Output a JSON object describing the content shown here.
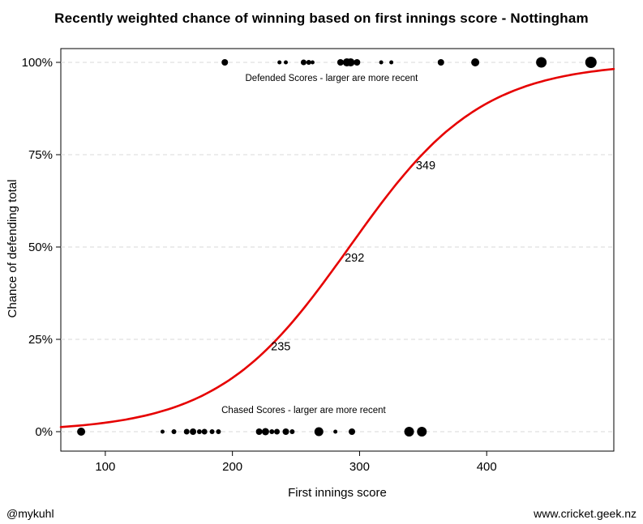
{
  "footer": {
    "left": "@mykuhl",
    "right": "www.cricket.geek.nz"
  },
  "chart_data": {
    "type": "scatter",
    "title": "Recently weighted chance of winning based on first innings score - Nottingham",
    "xlabel": "First innings score",
    "ylabel": "Chance of defending total",
    "x_domain": [
      65,
      500
    ],
    "x_ticks": [
      100,
      200,
      300,
      400
    ],
    "y_ticks": [
      0,
      25,
      50,
      75,
      100
    ],
    "y_tick_suffix": "%",
    "grid": "horizontal-dashed",
    "grid_color": "#d9d9d9",
    "point_color": "#000000",
    "curve": {
      "type": "logistic",
      "color": "#e60000",
      "midpoint_score": 292,
      "scale": 52,
      "score_at_25pct": 235,
      "score_at_50pct": 292,
      "score_at_75pct": 349
    },
    "annotations": [
      {
        "text": "235",
        "x": 238,
        "y": 22
      },
      {
        "text": "292",
        "x": 296,
        "y": 46
      },
      {
        "text": "349",
        "x": 352,
        "y": 71
      }
    ],
    "series": [
      {
        "name": "defended",
        "label": "Defended Scores - larger are more recent",
        "label_pos": {
          "x": 278,
          "y": 95
        },
        "y_value": 100,
        "points": [
          {
            "score": 194,
            "r": 4
          },
          {
            "score": 237,
            "r": 2.5
          },
          {
            "score": 242,
            "r": 2.5
          },
          {
            "score": 256,
            "r": 3.5
          },
          {
            "score": 260,
            "r": 3
          },
          {
            "score": 263,
            "r": 2.5
          },
          {
            "score": 285,
            "r": 4
          },
          {
            "score": 290,
            "r": 5
          },
          {
            "score": 293,
            "r": 5
          },
          {
            "score": 298,
            "r": 4
          },
          {
            "score": 317,
            "r": 2.5
          },
          {
            "score": 325,
            "r": 2.5
          },
          {
            "score": 364,
            "r": 4
          },
          {
            "score": 391,
            "r": 5
          },
          {
            "score": 443,
            "r": 6.5
          },
          {
            "score": 482,
            "r": 7
          }
        ]
      },
      {
        "name": "chased",
        "label": "Chased Scores - larger are more recent",
        "label_pos": {
          "x": 256,
          "y": 5
        },
        "y_value": 0,
        "points": [
          {
            "score": 81,
            "r": 5
          },
          {
            "score": 145,
            "r": 2.5
          },
          {
            "score": 154,
            "r": 3
          },
          {
            "score": 164,
            "r": 3.5
          },
          {
            "score": 169,
            "r": 4
          },
          {
            "score": 174,
            "r": 3
          },
          {
            "score": 178,
            "r": 3.5
          },
          {
            "score": 184,
            "r": 3
          },
          {
            "score": 189,
            "r": 3
          },
          {
            "score": 221,
            "r": 4
          },
          {
            "score": 226,
            "r": 4.5
          },
          {
            "score": 231,
            "r": 3
          },
          {
            "score": 235,
            "r": 3.5
          },
          {
            "score": 242,
            "r": 4
          },
          {
            "score": 247,
            "r": 3
          },
          {
            "score": 268,
            "r": 5.5
          },
          {
            "score": 281,
            "r": 2.5
          },
          {
            "score": 294,
            "r": 4
          },
          {
            "score": 339,
            "r": 6
          },
          {
            "score": 349,
            "r": 6
          }
        ]
      }
    ]
  }
}
